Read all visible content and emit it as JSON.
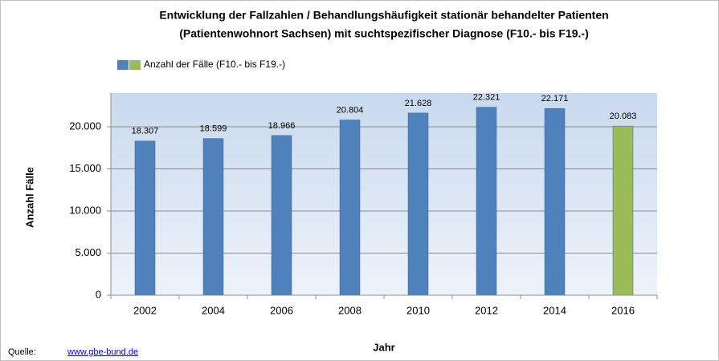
{
  "chart_data": {
    "type": "bar",
    "title": [
      "Entwicklung der Fallzahlen / Behandlungshäufigkeit stationär behandelter Patienten",
      "(Patientenwohnort Sachsen) mit suchtspezifischer Diagnose (F10.- bis F19.-)"
    ],
    "legend_label": "Anzahl der Fälle (F10.- bis F19.-)",
    "categories": [
      "2002",
      "2004",
      "2006",
      "2008",
      "2010",
      "2012",
      "2014",
      "2016"
    ],
    "values": [
      18307,
      18599,
      18966,
      20804,
      21628,
      22321,
      22171,
      20083
    ],
    "value_labels": [
      "18.307",
      "18.599",
      "18.966",
      "20.804",
      "21.628",
      "22.321",
      "22.171",
      "20.083"
    ],
    "colors": [
      "#4f81bd",
      "#4f81bd",
      "#4f81bd",
      "#4f81bd",
      "#4f81bd",
      "#4f81bd",
      "#4f81bd",
      "#9bbb59"
    ],
    "ylim": [
      0,
      24000
    ],
    "yticks": [
      0,
      {
        "value": 5000,
        "label": "5.000"
      },
      {
        "value": 10000,
        "label": "10.000"
      },
      {
        "value": 15000,
        "label": "15.000"
      },
      {
        "value": 20000,
        "label": "20.000"
      }
    ],
    "grid": true,
    "xlabel": "Jahr",
    "ylabel": "Anzahl Fälle",
    "source_label": "Quelle:",
    "source_link": "www.gbe-bund.de"
  }
}
